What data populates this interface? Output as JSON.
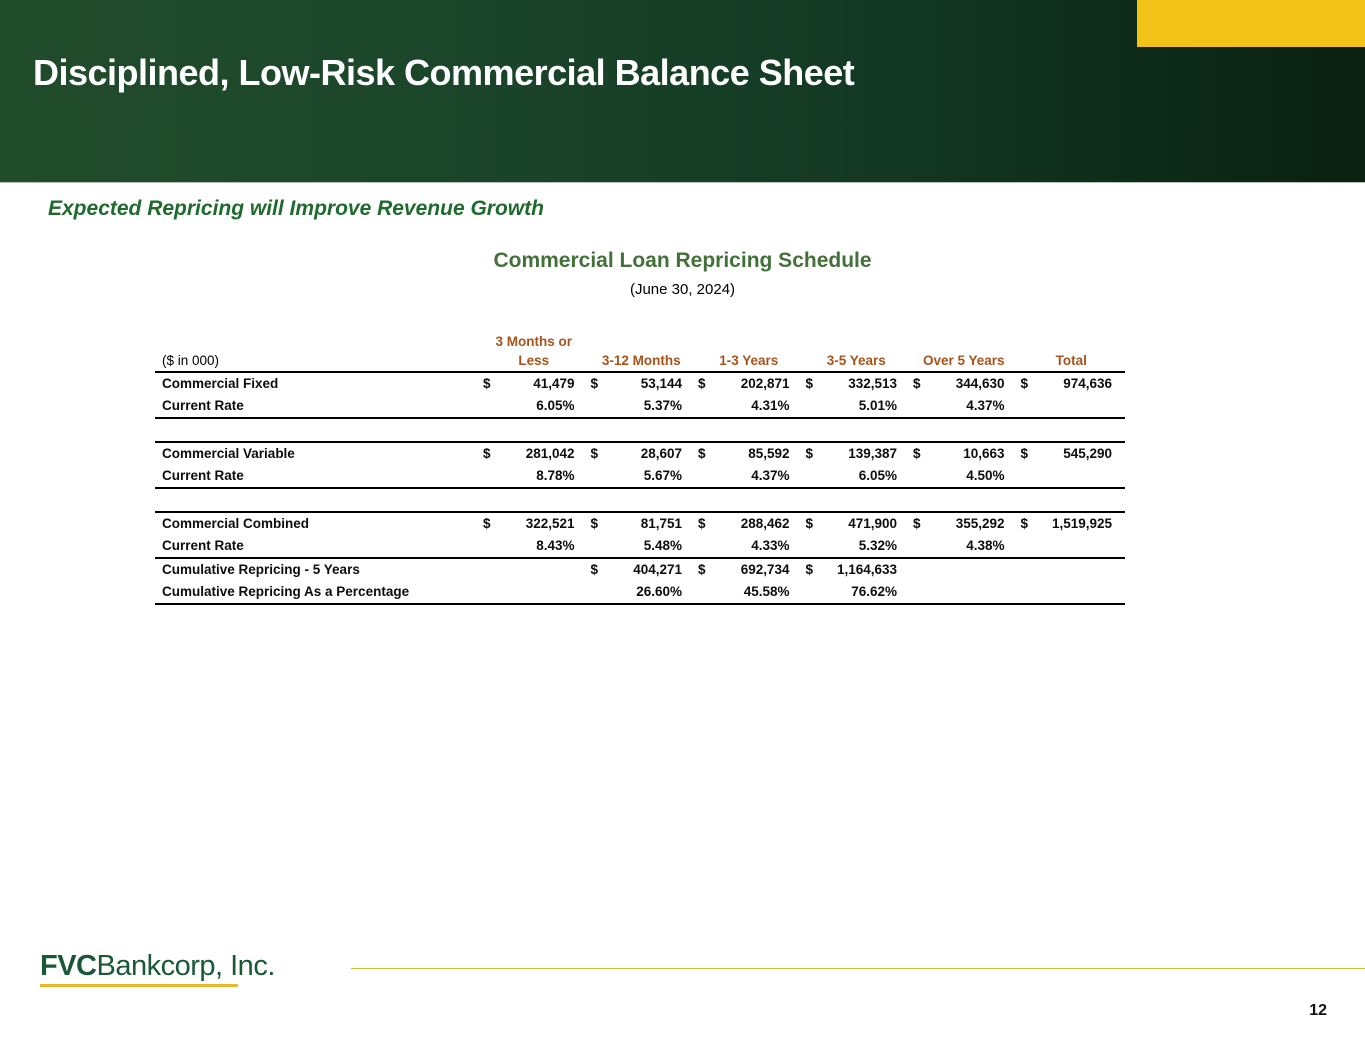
{
  "header": {
    "title": "Disciplined, Low-Risk Commercial Balance Sheet"
  },
  "subtitle": "Expected Repricing will Improve Revenue Growth",
  "table": {
    "title": "Commercial Loan Repricing Schedule",
    "date": "(June 30, 2024)",
    "unit_note": "($ in 000)",
    "col_header_top": "3 Months or",
    "columns": [
      "Less",
      "3-12 Months",
      "1-3 Years",
      "3-5 Years",
      "Over 5 Years",
      "Total"
    ],
    "sections": [
      {
        "gap_before": false,
        "border_top": false,
        "rows": [
          {
            "label": "Commercial Fixed",
            "cells": [
              [
                "$",
                "41,479"
              ],
              [
                "$",
                "53,144"
              ],
              [
                "$",
                "202,871"
              ],
              [
                "$",
                "332,513"
              ],
              [
                "$",
                "344,630"
              ],
              [
                "$",
                "974,636"
              ]
            ]
          },
          {
            "label": "Current Rate",
            "cells": [
              [
                "",
                "6.05%"
              ],
              [
                "",
                "5.37%"
              ],
              [
                "",
                "4.31%"
              ],
              [
                "",
                "5.01%"
              ],
              [
                "",
                "4.37%"
              ],
              [
                "",
                ""
              ]
            ]
          }
        ]
      },
      {
        "gap_before": true,
        "border_top": true,
        "rows": [
          {
            "label": "Commercial Variable",
            "cells": [
              [
                "$",
                "281,042"
              ],
              [
                "$",
                "28,607"
              ],
              [
                "$",
                "85,592"
              ],
              [
                "$",
                "139,387"
              ],
              [
                "$",
                "10,663"
              ],
              [
                "$",
                "545,290"
              ]
            ]
          },
          {
            "label": "Current Rate",
            "cells": [
              [
                "",
                "8.78%"
              ],
              [
                "",
                "5.67%"
              ],
              [
                "",
                "4.37%"
              ],
              [
                "",
                "6.05%"
              ],
              [
                "",
                "4.50%"
              ],
              [
                "",
                ""
              ]
            ]
          }
        ]
      },
      {
        "gap_before": true,
        "border_top": true,
        "rows": [
          {
            "label": "Commercial Combined",
            "cells": [
              [
                "$",
                "322,521"
              ],
              [
                "$",
                "81,751"
              ],
              [
                "$",
                "288,462"
              ],
              [
                "$",
                "471,900"
              ],
              [
                "$",
                "355,292"
              ],
              [
                "$",
                "1,519,925"
              ]
            ]
          },
          {
            "label": "Current Rate",
            "cells": [
              [
                "",
                "8.43%"
              ],
              [
                "",
                "5.48%"
              ],
              [
                "",
                "4.33%"
              ],
              [
                "",
                "5.32%"
              ],
              [
                "",
                "4.38%"
              ],
              [
                "",
                ""
              ]
            ]
          }
        ]
      },
      {
        "gap_before": false,
        "border_top": false,
        "last": true,
        "rows": [
          {
            "label": "Cumulative Repricing - 5 Years",
            "cells": [
              [
                "",
                ""
              ],
              [
                "$",
                "404,271"
              ],
              [
                "$",
                "692,734"
              ],
              [
                "$",
                "1,164,633"
              ],
              [
                "",
                ""
              ],
              [
                "",
                ""
              ]
            ]
          },
          {
            "label": "Cumulative Repricing As a Percentage",
            "cells": [
              [
                "",
                ""
              ],
              [
                "",
                "26.60%"
              ],
              [
                "",
                "45.58%"
              ],
              [
                "",
                "76.62%"
              ],
              [
                "",
                ""
              ],
              [
                "",
                ""
              ]
            ]
          }
        ]
      }
    ]
  },
  "footer": {
    "logo_bold": "FVC",
    "logo_rest": "Bankcorp, Inc.",
    "page_number": "12"
  },
  "colors": {
    "band_green_left": "#214c2b",
    "band_green_right": "#0a2010",
    "corner_yellow": "#f1c319",
    "subtitle_green": "#1f6b2d",
    "table_title_green": "#44703a",
    "column_header_brown": "#a6541c",
    "logo_green": "#1a5839",
    "logo_underline_gold": "#eab929",
    "footer_rule_gold": "#cdbe3c"
  }
}
